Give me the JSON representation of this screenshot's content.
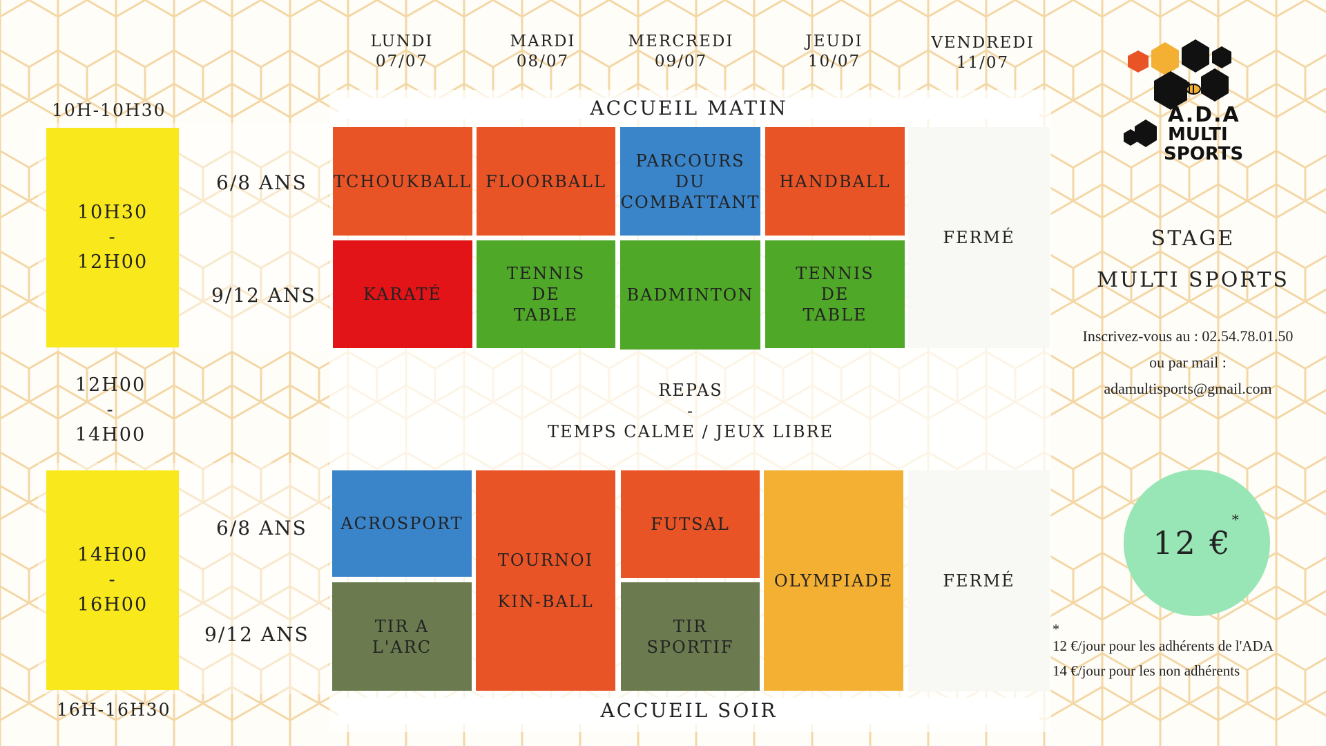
{
  "days": [
    {
      "name": "LUNDI",
      "date": "07/07"
    },
    {
      "name": "MARDI",
      "date": "08/07"
    },
    {
      "name": "MERCREDI",
      "date": "09/07"
    },
    {
      "name": "JEUDI",
      "date": "10/07"
    },
    {
      "name": "VENDREDI",
      "date": "11/07"
    }
  ],
  "times": {
    "arrival_morning": "10H-10H30",
    "morning_start": "10H30",
    "morning_sep": "-",
    "morning_end": "12H00",
    "lunch_start": "12H00",
    "lunch_sep": "-",
    "lunch_end": "14H00",
    "afternoon_start": "14H00",
    "afternoon_sep": "-",
    "afternoon_end": "16H00",
    "departure_evening": "16H-16H30"
  },
  "age_groups": {
    "young": "6/8 ANS",
    "older": "9/12 ANS"
  },
  "banners": {
    "morning": "ACCUEIL MATIN",
    "lunch_line1": "REPAS",
    "lunch_line2": "-",
    "lunch_line3": "TEMPS CALME / JEUX LIBRE",
    "evening": "ACCUEIL SOIR"
  },
  "morning": {
    "young": {
      "mon": "TCHOUKBALL",
      "tue": "FLOORBALL",
      "wed_1": "PARCOURS",
      "wed_2": "DU",
      "wed_3": "COMBATTANT",
      "thu": "HANDBALL"
    },
    "older": {
      "mon": "KARATÉ",
      "tue_1": "TENNIS",
      "tue_2": "DE",
      "tue_3": "TABLE",
      "wed": "BADMINTON",
      "thu_1": "TENNIS",
      "thu_2": "DE",
      "thu_3": "TABLE"
    },
    "fri": "FERMÉ"
  },
  "afternoon": {
    "young": {
      "mon": "ACROSPORT",
      "wed": "FUTSAL"
    },
    "older": {
      "mon_1": "TIR A",
      "mon_2": "L'ARC",
      "wed_1": "TIR",
      "wed_2": "SPORTIF"
    },
    "tue_1": "TOURNOI",
    "tue_2": "KIN-BALL",
    "thu": "OLYMPIADE",
    "fri": "FERMÉ"
  },
  "logo": {
    "line1": "A.D.A",
    "line2": "MULTI",
    "line3": "SPORTS"
  },
  "sidebar": {
    "title_1": "STAGE",
    "title_2": "MULTI SPORTS",
    "signup": "Inscrivez-vous au : 02.54.78.01.50",
    "or_mail": "ou par mail :",
    "email": "adamultisports@gmail.com",
    "price": "12 €",
    "price_star": "*",
    "note_star": "*",
    "note_1": "12 €/jour pour les adhérents de l'ADA",
    "note_2": "14 €/jour pour les non adhérents"
  },
  "colors": {
    "time_block": "#f8e81c",
    "orange": "#e95426",
    "blue": "#3a84c9",
    "red": "#e31418",
    "green": "#50a829",
    "olive": "#6b7b4f",
    "amber": "#f4b032",
    "price_circle": "#98e5b6",
    "hex_pattern": "#f3d7a6"
  }
}
